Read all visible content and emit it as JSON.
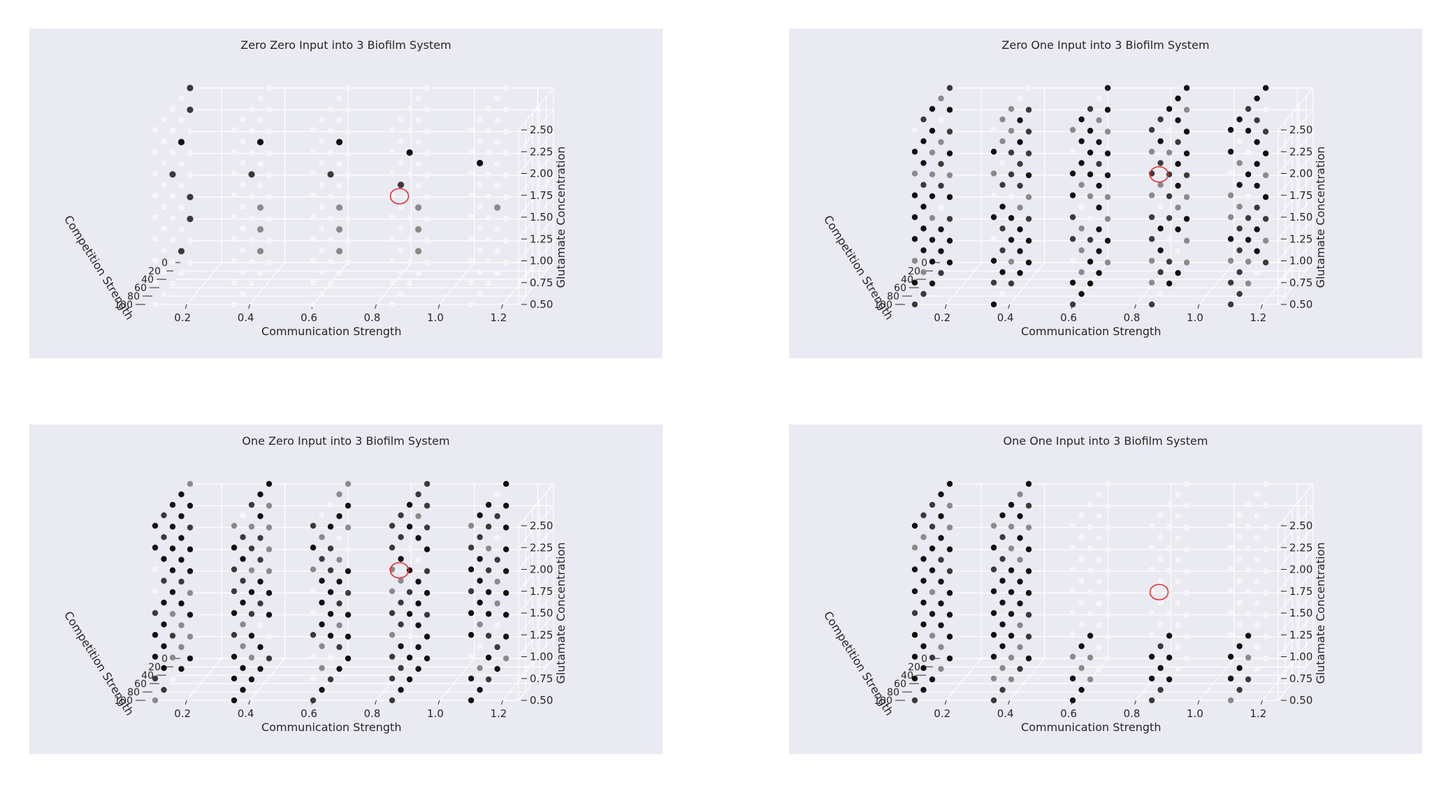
{
  "chart_data": [
    {
      "type": "scatter3d",
      "title": "Zero Zero Input into 3 Biofilm System",
      "xlabel": "Communication Strength",
      "ylabel": "Competition Strength",
      "zlabel": "Glutamate Concentration",
      "x_ticks": [
        "0.2",
        "0.4",
        "0.6",
        "0.8",
        "1.0",
        "1.2"
      ],
      "y_ticks": [
        "0",
        "20",
        "40",
        "60",
        "80",
        "100"
      ],
      "z_ticks": [
        "0.50",
        "0.75",
        "1.00",
        "1.25",
        "1.50",
        "1.75",
        "2.00",
        "2.25",
        "2.50"
      ],
      "x_values": [
        0.1,
        0.35,
        0.6,
        0.85,
        1.1
      ],
      "y_values": [
        0,
        25,
        50,
        75,
        100
      ],
      "z_values": [
        0.5,
        0.75,
        1.0,
        1.25,
        1.5,
        1.75,
        2.0,
        2.25,
        2.5
      ],
      "points": [
        [
          0.1,
          0,
          2.5,
          "dark"
        ],
        [
          0.1,
          0,
          2.25,
          "dark"
        ],
        [
          0.1,
          25,
          2.0,
          "black"
        ],
        [
          0.1,
          50,
          1.75,
          "dark"
        ],
        [
          0.1,
          0,
          1.25,
          "dark"
        ],
        [
          0.1,
          0,
          1.0,
          "dark"
        ],
        [
          0.1,
          25,
          0.75,
          "dark"
        ],
        [
          0.35,
          25,
          2.0,
          "black"
        ],
        [
          0.35,
          50,
          1.75,
          "dark"
        ],
        [
          0.35,
          25,
          1.25,
          "gray"
        ],
        [
          0.35,
          25,
          1.0,
          "gray"
        ],
        [
          0.35,
          25,
          0.75,
          "gray"
        ],
        [
          0.6,
          25,
          2.0,
          "black"
        ],
        [
          0.6,
          50,
          1.75,
          "dark"
        ],
        [
          0.6,
          25,
          1.25,
          "gray"
        ],
        [
          0.6,
          25,
          1.0,
          "gray"
        ],
        [
          0.6,
          25,
          0.75,
          "gray"
        ],
        [
          0.85,
          25,
          1.25,
          "gray"
        ],
        [
          0.85,
          25,
          1.0,
          "gray"
        ],
        [
          0.85,
          25,
          0.75,
          "gray"
        ],
        [
          0.85,
          50,
          2.0,
          "black"
        ],
        [
          0.85,
          75,
          1.75,
          "dark"
        ],
        [
          1.1,
          25,
          1.25,
          "gray"
        ],
        [
          1.1,
          75,
          2.0,
          "black"
        ]
      ],
      "annotation": "red circle near 0.8 / 1.5"
    },
    {
      "type": "scatter3d",
      "title": "Zero One Input into 3 Biofilm System",
      "xlabel": "Communication Strength",
      "ylabel": "Competition Strength",
      "zlabel": "Glutamate Concentration",
      "x_ticks": [
        "0.2",
        "0.4",
        "0.6",
        "0.8",
        "1.0",
        "1.2"
      ],
      "y_ticks": [
        "0",
        "20",
        "40",
        "60",
        "80",
        "100"
      ],
      "z_ticks": [
        "0.50",
        "0.75",
        "1.00",
        "1.25",
        "1.50",
        "1.75",
        "2.00",
        "2.25",
        "2.50"
      ],
      "x_values": [
        0.1,
        0.35,
        0.6,
        0.85,
        1.1
      ],
      "y_values": [
        0,
        25,
        50,
        75,
        100
      ],
      "z_values": [
        0.5,
        0.75,
        1.0,
        1.25,
        1.5,
        1.75,
        2.0,
        2.25,
        2.5
      ],
      "fill": "dense",
      "annotation": "red circle near 0.8 / 1.75"
    },
    {
      "type": "scatter3d",
      "title": "One Zero Input into 3 Biofilm System",
      "xlabel": "Communication Strength",
      "ylabel": "Competition Strength",
      "zlabel": "Glutamate Concentration",
      "x_ticks": [
        "0.2",
        "0.4",
        "0.6",
        "0.8",
        "1.0",
        "1.2"
      ],
      "y_ticks": [
        "0",
        "20",
        "40",
        "60",
        "80",
        "100"
      ],
      "z_ticks": [
        "0.50",
        "0.75",
        "1.00",
        "1.25",
        "1.50",
        "1.75",
        "2.00",
        "2.25",
        "2.50"
      ],
      "x_values": [
        0.1,
        0.35,
        0.6,
        0.85,
        1.1
      ],
      "y_values": [
        0,
        25,
        50,
        75,
        100
      ],
      "z_values": [
        0.5,
        0.75,
        1.0,
        1.25,
        1.5,
        1.75,
        2.0,
        2.25,
        2.5
      ],
      "fill": "dense",
      "annotation": "red circle near 0.8 / 1.75"
    },
    {
      "type": "scatter3d",
      "title": "One One Input into 3 Biofilm System",
      "xlabel": "Communication Strength",
      "ylabel": "Competition Strength",
      "zlabel": "Glutamate Concentration",
      "x_ticks": [
        "0.2",
        "0.4",
        "0.6",
        "0.8",
        "1.0",
        "1.2"
      ],
      "y_ticks": [
        "0",
        "20",
        "40",
        "60",
        "80",
        "100"
      ],
      "z_ticks": [
        "0.50",
        "0.75",
        "1.00",
        "1.25",
        "1.50",
        "1.75",
        "2.00",
        "2.25",
        "2.50"
      ],
      "x_values": [
        0.1,
        0.35,
        0.6,
        0.85,
        1.1
      ],
      "y_values": [
        0,
        25,
        50,
        75,
        100
      ],
      "z_values": [
        0.5,
        0.75,
        1.0,
        1.25,
        1.5,
        1.75,
        2.0,
        2.25,
        2.5
      ],
      "fill": "partial",
      "annotation": "red circle near 0.8 / 1.5"
    }
  ],
  "colors": {
    "panel_bg": "#eaeaf2",
    "grid": "#ffffff",
    "text": "#262626",
    "annotation": "#e3302f",
    "black": "#111111",
    "dark": "#3a3a3a",
    "gray": "#8a8a8a",
    "white": "#f6f6f8"
  }
}
